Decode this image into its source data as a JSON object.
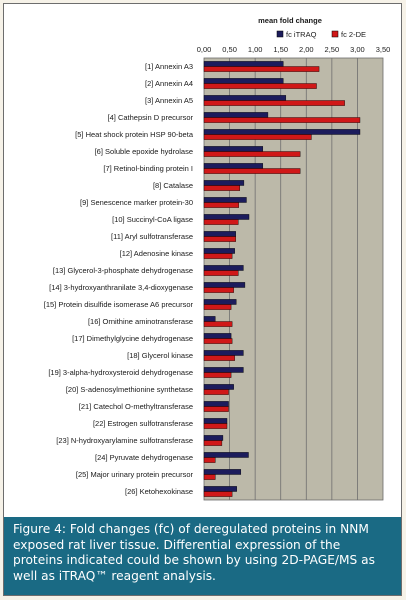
{
  "chart_data": {
    "type": "bar",
    "orientation": "horizontal",
    "title": "mean fold change",
    "xlim": [
      0,
      3.5
    ],
    "xticks": [
      "0,00",
      "0,50",
      "1,00",
      "1,50",
      "2,00",
      "2,50",
      "3,00",
      "3,50"
    ],
    "grid": true,
    "legend_position": "top-right",
    "categories": [
      "[1] Annexin A3",
      "[2] Annexin A4",
      "[3] Annexin A5",
      "[4] Cathepsin D precursor",
      "[5] Heat shock protein HSP 90-beta",
      "[6] Soluble epoxide hydrolase",
      "[7] Retinol-binding protein I",
      "[8] Catalase",
      "[9] Senescence marker protein-30",
      "[10] Succinyl-CoA ligase",
      "[11] Aryl sulfotransferase",
      "[12] Adenosine kinase",
      "[13] Glycerol-3-phosphate dehydrogenase",
      "[14] 3-hydroxyanthranilate 3,4-dioxygenase",
      "[15] Protein disulfide isomerase A6 precursor",
      "[16] Ornithine aminotransferase",
      "[17] Dimethylglycine dehydrogenase",
      "[18] Glycerol kinase",
      "[19] 3-alpha-hydroxysteroid dehydrogenase",
      "[20] S-adenosylmethionine synthetase",
      "[21] Catechol O-methyltransferase",
      "[22] Estrogen sulfotransferase",
      "[23] N-hydroxyarylamine sulfotransferase",
      "[24] Pyruvate dehydrogenase",
      "[25] Major urinary protein precursor",
      "[26] Ketohexokinase"
    ],
    "series": [
      {
        "name": "fc iTRAQ",
        "color": "#1c1c5c",
        "values": [
          1.55,
          1.55,
          1.6,
          1.25,
          3.05,
          1.15,
          1.15,
          0.78,
          0.83,
          0.88,
          0.62,
          0.6,
          0.77,
          0.8,
          0.63,
          0.22,
          0.53,
          0.77,
          0.77,
          0.58,
          0.48,
          0.45,
          0.37,
          0.87,
          0.72,
          0.64
        ]
      },
      {
        "name": "fc 2-DE",
        "color": "#d01818",
        "values": [
          2.25,
          2.2,
          2.75,
          3.05,
          2.1,
          1.88,
          1.88,
          0.7,
          0.68,
          0.67,
          0.62,
          0.55,
          0.67,
          0.58,
          0.53,
          0.55,
          0.55,
          0.6,
          0.53,
          0.48,
          0.48,
          0.45,
          0.35,
          0.22,
          0.22,
          0.55
        ]
      }
    ]
  },
  "colors": {
    "plot_background": "#bcb9a9",
    "caption_background": "#1a6a84"
  },
  "caption": {
    "text": "Figure 4: Fold changes (fc) of deregulated proteins in NNM exposed rat liver tissue. Differential expression of the proteins indicated could be shown by using 2D-PAGE/MS as well as iTRAQ™ reagent analysis."
  }
}
